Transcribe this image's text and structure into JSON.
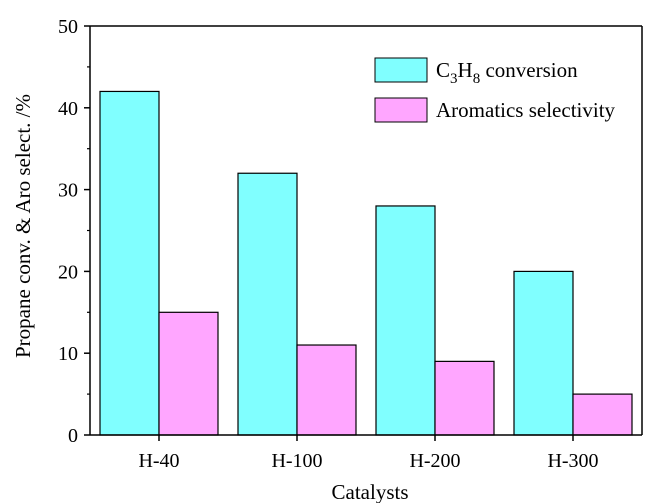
{
  "chart_data": {
    "type": "bar",
    "categories": [
      "H-40",
      "H-100",
      "H-200",
      "H-300"
    ],
    "series": [
      {
        "name": "C3H8 conversion",
        "name_main": "C",
        "name_sub1": "3",
        "name_mid": "H",
        "name_sub2": "8",
        "name_tail": " conversion",
        "color": "#80ffff",
        "values": [
          42,
          32,
          28,
          20
        ]
      },
      {
        "name": "Aromatics selectivity",
        "color": "#ffa6ff",
        "values": [
          15,
          11,
          9,
          5
        ]
      }
    ],
    "xlabel": "Catalysts",
    "ylabel": "Propane conv. & Aro select. /%",
    "ylim": [
      0,
      50
    ],
    "yticks": [
      "0",
      "10",
      "20",
      "30",
      "40",
      "50"
    ],
    "legend_position": "top-right",
    "grid": false
  }
}
